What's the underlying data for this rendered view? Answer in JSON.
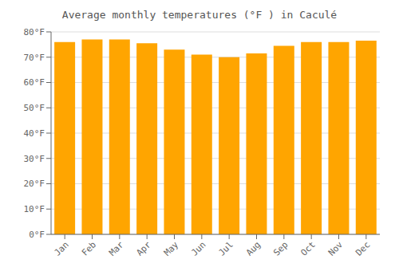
{
  "chart_data": {
    "type": "bar",
    "title": "Average monthly temperatures (°F ) in Caculé",
    "categories": [
      "Jan",
      "Feb",
      "Mar",
      "Apr",
      "May",
      "Jun",
      "Jul",
      "Aug",
      "Sep",
      "Oct",
      "Nov",
      "Dec"
    ],
    "values": [
      76,
      77,
      77,
      75.5,
      73,
      71,
      70,
      71.5,
      74.5,
      76,
      76,
      76.5
    ],
    "color": "#FFA500",
    "ylim": [
      0,
      80
    ],
    "yticks": [
      {
        "value": 0,
        "label": "0°F"
      },
      {
        "value": 10,
        "label": "10°F"
      },
      {
        "value": 20,
        "label": "20°F"
      },
      {
        "value": 30,
        "label": "30°F"
      },
      {
        "value": 40,
        "label": "40°F"
      },
      {
        "value": 50,
        "label": "50°F"
      },
      {
        "value": 60,
        "label": "60°F"
      },
      {
        "value": 70,
        "label": "70°F"
      },
      {
        "value": 80,
        "label": "80°F"
      }
    ],
    "grid": true
  }
}
